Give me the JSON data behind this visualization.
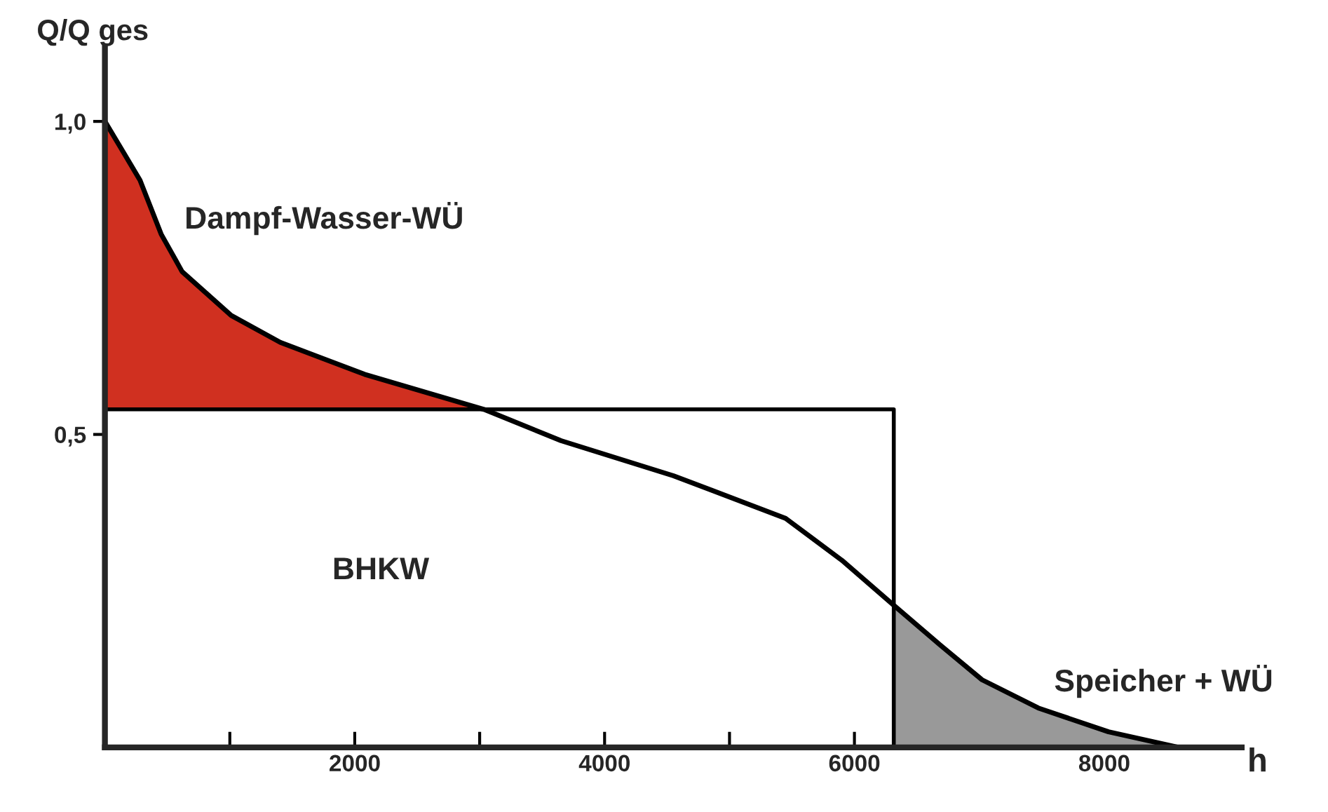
{
  "chart_data": {
    "type": "line",
    "xlabel": "h",
    "ylabel": "Q/Q ges",
    "xlim": [
      0,
      9100
    ],
    "ylim": [
      0,
      1.12
    ],
    "xticks": [
      {
        "value": 1000,
        "label": null
      },
      2000,
      {
        "value": 3000,
        "label": null
      },
      4000,
      {
        "value": 5000,
        "label": null
      },
      6000,
      {
        "value": 7000,
        "label": null
      },
      8000
    ],
    "yticks": [
      {
        "value": 0.5,
        "label": "0,5"
      },
      {
        "value": 1.0,
        "label": "1,0"
      }
    ],
    "grid": false,
    "legend": false,
    "series": [
      {
        "type": "area",
        "color": "#d03020",
        "x": [
          0,
          150,
          281,
          450,
          618,
          1011,
          1404,
          2079,
          3034
        ],
        "values": [
          1.0,
          0.95,
          0.906,
          0.82,
          0.76,
          0.69,
          0.647,
          0.596,
          0.54
        ]
      },
      {
        "type": "area",
        "color": "#999999",
        "x": [
          6315,
          6685,
          7022,
          7472,
          8034,
          8596
        ],
        "values": [
          0.228,
          0.164,
          0.108,
          0.063,
          0.025,
          0.0
        ]
      },
      {
        "type": "line",
        "color": "#000000",
        "x": [
          0,
          6315,
          6315
        ],
        "values": [
          0.54,
          0.54,
          0.0
        ]
      },
      {
        "color": "#000000",
        "x": [
          0,
          150,
          281,
          450,
          618,
          1011,
          1404,
          2079,
          3034,
          3652,
          4551,
          5449,
          5899,
          6292,
          6685,
          7022,
          7472,
          8034,
          8596
        ],
        "values": [
          1.0,
          0.95,
          0.906,
          0.82,
          0.76,
          0.69,
          0.647,
          0.596,
          0.54,
          0.49,
          0.434,
          0.366,
          0.299,
          0.231,
          0.164,
          0.108,
          0.063,
          0.025,
          0.0
        ]
      }
    ],
    "annotations": [
      "Dampf-Wasser-WÜ",
      "BHKW",
      "Speicher + WÜ"
    ]
  }
}
